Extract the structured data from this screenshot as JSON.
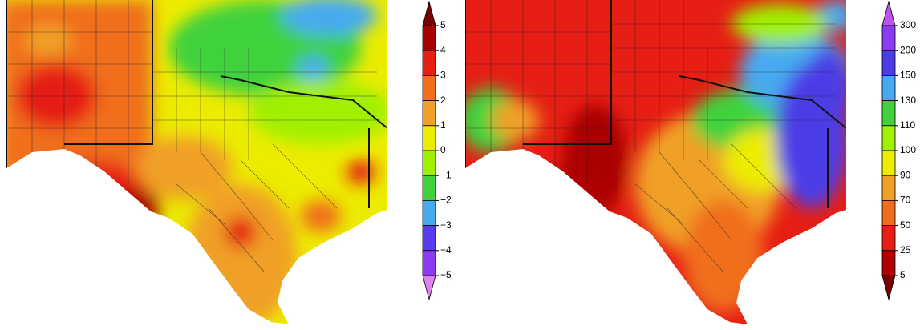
{
  "left_colorbar": {
    "labels": [
      "5",
      "4",
      "3",
      "2",
      "1",
      "0",
      "−1",
      "−2",
      "−3",
      "−4",
      "−5"
    ],
    "colors": [
      "#a80000",
      "#e61e14",
      "#f06e1e",
      "#f0a028",
      "#ecec00",
      "#a0f000",
      "#40d23c",
      "#46aaf0",
      "#5a3cf0",
      "#8c3cf0"
    ],
    "top_color": "#7a0000",
    "bottom_color": "#e082f0"
  },
  "right_colorbar": {
    "labels": [
      "300",
      "200",
      "150",
      "130",
      "110",
      "100",
      "90",
      "70",
      "50",
      "25",
      "5"
    ],
    "colors": [
      "#8c3cf0",
      "#4b3ce6",
      "#46aaf0",
      "#40d23c",
      "#a0f000",
      "#ecec00",
      "#f0a028",
      "#f06e1e",
      "#e61e14",
      "#b00000"
    ],
    "top_color": "#c050f0",
    "bottom_color": "#7a0000"
  }
}
